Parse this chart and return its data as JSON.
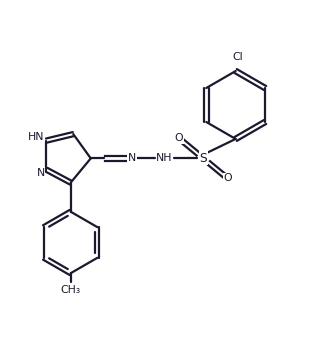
{
  "background_color": "#ffffff",
  "line_color": "#1a1a2e",
  "line_width": 1.6,
  "label_fontsize": 7.8,
  "figure_width": 3.29,
  "figure_height": 3.41,
  "dpi": 100,
  "xlim": [
    0,
    10
  ],
  "ylim": [
    0,
    10.35
  ]
}
